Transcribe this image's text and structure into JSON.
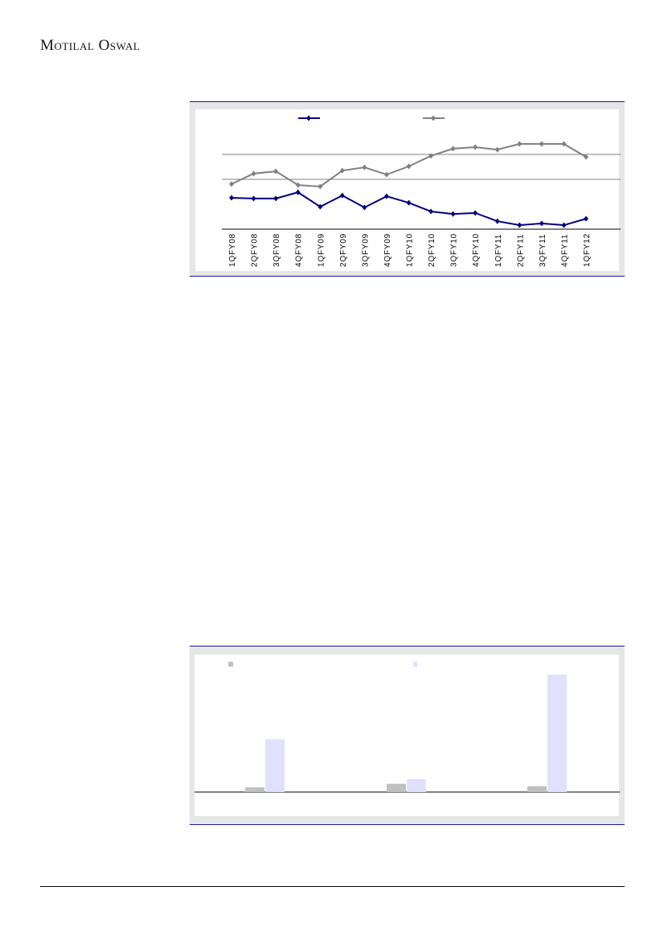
{
  "header": {
    "logo_text": "Motilal Oswal"
  },
  "chart_data": [
    {
      "type": "line",
      "categories": [
        "1QFY08",
        "2QFY08",
        "3QFY08",
        "4QFY08",
        "1QFY09",
        "2QFY09",
        "3QFY09",
        "4QFY09",
        "1QFY10",
        "2QFY10",
        "3QFY10",
        "4QFY10",
        "1QFY11",
        "2QFY11",
        "3QFY11",
        "4QFY11",
        "1QFY12"
      ],
      "series": [
        {
          "color": "#000080",
          "marker": "diamond",
          "values": [
            12.6,
            12.3,
            12.3,
            14.8,
            9.0,
            13.5,
            8.7,
            13.2,
            10.6,
            7.1,
            6.1,
            6.5,
            3.2,
            1.6,
            2.3,
            1.6,
            4.2
          ]
        },
        {
          "color": "#808080",
          "marker": "diamond",
          "values": [
            18.1,
            22.3,
            23.2,
            17.7,
            17.1,
            23.5,
            24.8,
            21.9,
            25.2,
            29.4,
            32.3,
            32.9,
            31.9,
            34.2,
            34.2,
            34.2,
            29.0
          ]
        }
      ],
      "ylim": [
        0,
        40
      ],
      "gridlines": [
        20,
        30
      ],
      "legend": "top",
      "grid": true
    },
    {
      "type": "bar",
      "categories": [
        "",
        "",
        ""
      ],
      "series": [
        {
          "color": "#c0c0c0",
          "values": [
            4,
            7,
            5
          ]
        },
        {
          "color": "#e0e0ff",
          "values": [
            45,
            11,
            100
          ]
        }
      ],
      "ylim": [
        0,
        110
      ],
      "legend": "top",
      "grid": false
    }
  ]
}
